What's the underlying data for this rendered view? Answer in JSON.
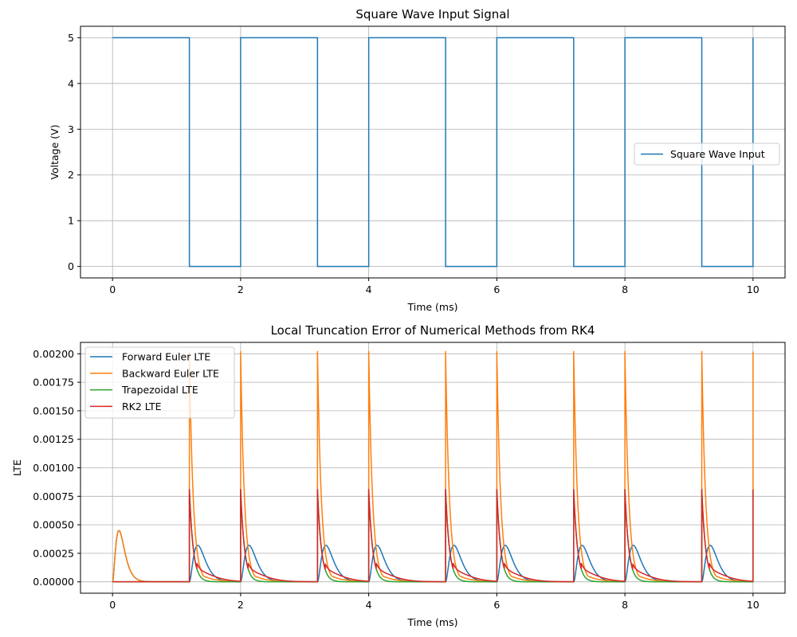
{
  "chart_data": [
    {
      "type": "line",
      "title": "Square Wave Input Signal",
      "xlabel": "Time (ms)",
      "ylabel": "Voltage (V)",
      "xlim": [
        -0.5,
        10.5
      ],
      "ylim": [
        -0.25,
        5.25
      ],
      "xticks": [
        0,
        2,
        4,
        6,
        8,
        10
      ],
      "yticks": [
        0,
        1,
        2,
        3,
        4,
        5
      ],
      "xtick_labels": [
        "0",
        "2",
        "4",
        "6",
        "8",
        "10"
      ],
      "ytick_labels": [
        "0",
        "1",
        "2",
        "3",
        "4",
        "5"
      ],
      "grid": true,
      "legend": "center-right",
      "series": [
        {
          "name": "Square Wave Input",
          "color": "#1f77b4",
          "x": [
            0,
            1.2,
            1.2,
            2,
            2,
            3.2,
            3.2,
            4,
            4,
            5.2,
            5.2,
            6,
            6,
            7.2,
            7.2,
            8,
            8,
            9.2,
            9.2,
            10,
            10
          ],
          "y": [
            5,
            5,
            0,
            0,
            5,
            5,
            0,
            0,
            5,
            5,
            0,
            0,
            5,
            5,
            0,
            0,
            5,
            5,
            0,
            0,
            5
          ]
        }
      ]
    },
    {
      "type": "line",
      "title": "Local Truncation Error of Numerical Methods from RK4",
      "xlabel": "Time (ms)",
      "ylabel": "LTE",
      "xlim": [
        -0.5,
        10.5
      ],
      "ylim": [
        -0.0001,
        0.0021
      ],
      "xticks": [
        0,
        2,
        4,
        6,
        8,
        10
      ],
      "yticks": [
        0,
        0.00025,
        0.0005,
        0.00075,
        0.001,
        0.00125,
        0.0015,
        0.00175,
        0.002
      ],
      "xtick_labels": [
        "0",
        "2",
        "4",
        "6",
        "8",
        "10"
      ],
      "ytick_labels": [
        "0.00000",
        "0.00025",
        "0.00050",
        "0.00075",
        "0.00100",
        "0.00125",
        "0.00150",
        "0.00175",
        "0.00200"
      ],
      "grid": true,
      "legend": "upper-left",
      "edges": [
        1.2,
        2,
        3.2,
        4,
        5.2,
        6,
        7.2,
        8,
        9.2,
        10
      ],
      "initial_hump": {
        "peak_time": 0.1,
        "peak_value": 0.00045
      },
      "series": [
        {
          "name": "Forward Euler LTE",
          "color": "#1f77b4",
          "pulse_peak": 0.00032,
          "pulse_peak_delay": 0.13
        },
        {
          "name": "Backward Euler LTE",
          "color": "#ff7f0e",
          "spike_peak": 0.00202,
          "spike_decay": 0.06
        },
        {
          "name": "Trapezoidal LTE",
          "color": "#2ca02c",
          "spike_peak": 0.00081,
          "spike_decay": 0.06
        },
        {
          "name": "RK2 LTE",
          "color": "#d62728",
          "spike_peak": 0.00081,
          "spike_decay": 0.06
        }
      ]
    }
  ]
}
